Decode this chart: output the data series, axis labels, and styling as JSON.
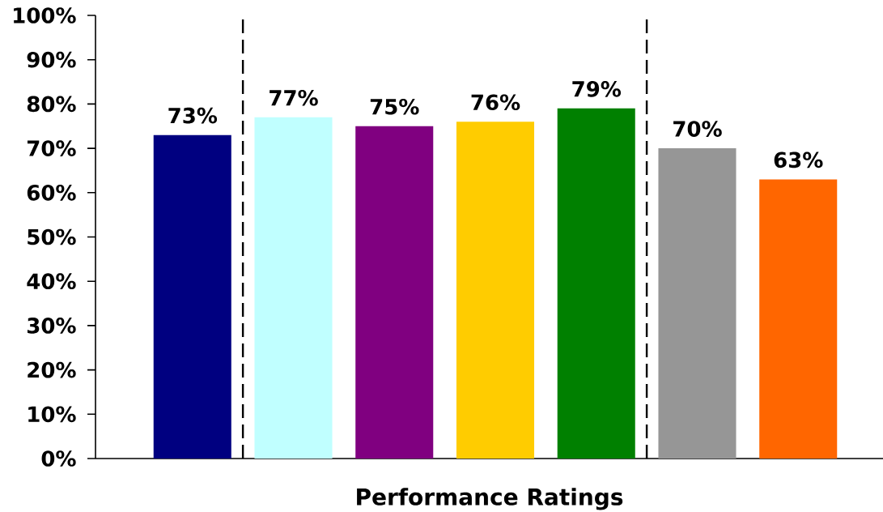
{
  "chart_data": {
    "type": "bar",
    "xlabel": "Performance Ratings",
    "categories": [
      null,
      null,
      null,
      null,
      null,
      null,
      null
    ],
    "values": [
      73,
      77,
      75,
      76,
      79,
      70,
      63
    ],
    "colors": [
      "#000080",
      "#c0ffff",
      "#800080",
      "#ffcc00",
      "#008000",
      "#969696",
      "#ff6600"
    ],
    "value_labels": [
      "73%",
      "77%",
      "75%",
      "76%",
      "79%",
      "70%",
      "63%"
    ],
    "ylim": [
      0,
      100
    ],
    "yticks": [
      {
        "value": 0,
        "label": "0%"
      },
      {
        "value": 10,
        "label": "10%"
      },
      {
        "value": 20,
        "label": "20%"
      },
      {
        "value": 30,
        "label": "30%"
      },
      {
        "value": 40,
        "label": "40%"
      },
      {
        "value": 50,
        "label": "50%"
      },
      {
        "value": 60,
        "label": "60%"
      },
      {
        "value": 70,
        "label": "70%"
      },
      {
        "value": 80,
        "label": "80%"
      },
      {
        "value": 90,
        "label": "90%"
      },
      {
        "value": 100,
        "label": "100%"
      }
    ]
  }
}
